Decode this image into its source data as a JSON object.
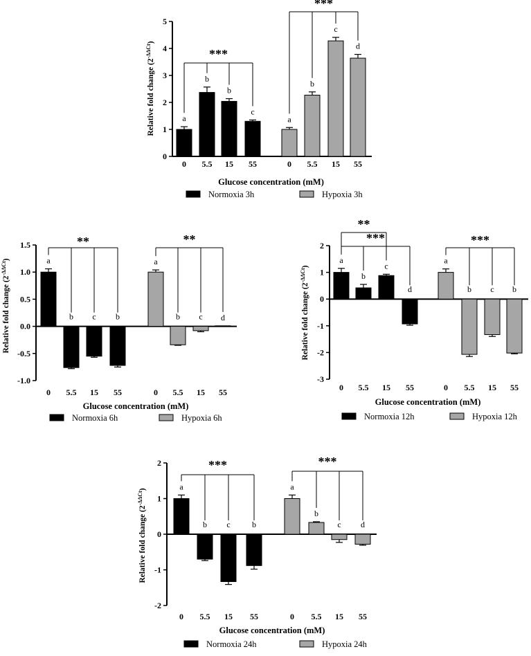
{
  "chart_data": [
    {
      "id": "3h",
      "type": "bar",
      "title": "",
      "xlabel": "Glucose concentration (mM)",
      "ylabel_main": "Relative fold change (2",
      "ylabel_sup": "-ΔΔCt",
      "ylabel_close": ")",
      "ylim": [
        0,
        5
      ],
      "yticks": [
        "0",
        "1",
        "2",
        "3",
        "4",
        "5"
      ],
      "ytick_values": [
        0,
        1,
        2,
        3,
        4,
        5
      ],
      "categories": [
        "0",
        "5.5",
        "15",
        "55"
      ],
      "series": [
        {
          "name": "Normoxia 3h",
          "color": "#000000",
          "values": [
            1.0,
            2.37,
            2.04,
            1.3
          ],
          "errors": [
            0.1,
            0.2,
            0.1,
            0.05
          ],
          "letters": [
            "a",
            "b",
            "b",
            "c"
          ]
        },
        {
          "name": "Hypoxia 3h",
          "color": "#a6a6a6",
          "values": [
            1.0,
            2.27,
            4.28,
            3.64
          ],
          "errors": [
            0.07,
            0.12,
            0.13,
            0.14
          ],
          "letters": [
            "a",
            "b",
            "c",
            "d"
          ]
        }
      ],
      "significance": [
        {
          "series": 0,
          "label": "***",
          "from": 0,
          "to": [
            1,
            2,
            3
          ]
        },
        {
          "series": 1,
          "label": "***",
          "from": 0,
          "to": [
            1,
            2,
            3
          ]
        }
      ]
    },
    {
      "id": "6h",
      "type": "bar",
      "title": "",
      "xlabel": "Glucose concentration (mM)",
      "ylabel_main": "Relative fold change (2",
      "ylabel_sup": "-ΔΔCt",
      "ylabel_close": ")",
      "ylim": [
        -1.0,
        1.5
      ],
      "yticks": [
        "-1.0",
        "-0.5",
        "0.0",
        "0.5",
        "1.0",
        "1.5"
      ],
      "ytick_values": [
        -1.0,
        -0.5,
        0.0,
        0.5,
        1.0,
        1.5
      ],
      "categories": [
        "0",
        "5.5",
        "15",
        "55"
      ],
      "series": [
        {
          "name": "Normoxia 6h",
          "color": "#000000",
          "values": [
            1.0,
            -0.76,
            -0.55,
            -0.72
          ],
          "errors": [
            0.06,
            0.02,
            0.02,
            0.03
          ],
          "letters": [
            "a",
            "b",
            "c",
            "b"
          ]
        },
        {
          "name": "Hypoxia 6h",
          "color": "#a6a6a6",
          "values": [
            1.0,
            -0.34,
            -0.08,
            0.01
          ],
          "errors": [
            0.04,
            0.01,
            0.02,
            0.0
          ],
          "letters": [
            "a",
            "b",
            "c",
            "d"
          ]
        }
      ],
      "significance": [
        {
          "series": 0,
          "label": "**",
          "from": 0,
          "to": [
            1,
            2,
            3
          ]
        },
        {
          "series": 1,
          "label": "**",
          "from": 0,
          "to": [
            1,
            2,
            3
          ]
        }
      ]
    },
    {
      "id": "12h",
      "type": "bar",
      "title": "",
      "xlabel": "Glucose concentration (mM)",
      "ylabel_main": "Relative fold change (2",
      "ylabel_sup": "-ΔΔCt",
      "ylabel_close": ")",
      "ylim": [
        -3,
        2
      ],
      "yticks": [
        "-3",
        "-2",
        "-1",
        "0",
        "1",
        "2"
      ],
      "ytick_values": [
        -3,
        -2,
        -1,
        0,
        1,
        2
      ],
      "categories": [
        "0",
        "5.5",
        "15",
        "55"
      ],
      "series": [
        {
          "name": "Normoxia 12h",
          "color": "#000000",
          "values": [
            1.0,
            0.42,
            0.88,
            -0.93
          ],
          "errors": [
            0.15,
            0.13,
            0.05,
            0.05
          ],
          "letters": [
            "a",
            "b",
            "c",
            "d"
          ]
        },
        {
          "name": "Hypoxia 12h",
          "color": "#a6a6a6",
          "values": [
            1.0,
            -2.07,
            -1.33,
            -2.02
          ],
          "errors": [
            0.13,
            0.08,
            0.07,
            0.03
          ],
          "letters": [
            "a",
            "b",
            "c",
            "b"
          ]
        }
      ],
      "significance": [
        {
          "series": 0,
          "label": "**",
          "from": 0,
          "to": [
            2
          ]
        },
        {
          "series": 0,
          "label": "***",
          "from": 0,
          "to": [
            1,
            2,
            3
          ]
        },
        {
          "series": 1,
          "label": "***",
          "from": 0,
          "to": [
            1,
            2,
            3
          ]
        }
      ]
    },
    {
      "id": "24h",
      "type": "bar",
      "title": "",
      "xlabel": "Glucose concentration (mM)",
      "ylabel_main": "Relative fold change (2",
      "ylabel_sup": "-ΔΔCt",
      "ylabel_close": ")",
      "ylim": [
        -2,
        2
      ],
      "yticks": [
        "-2",
        "-1",
        "0",
        "1",
        "2"
      ],
      "ytick_values": [
        -2,
        -1,
        0,
        1,
        2
      ],
      "categories": [
        "0",
        "5.5",
        "15",
        "55"
      ],
      "series": [
        {
          "name": "Normoxia 24h",
          "color": "#000000",
          "values": [
            1.0,
            -0.7,
            -1.33,
            -0.88
          ],
          "errors": [
            0.1,
            0.04,
            0.08,
            0.1
          ],
          "letters": [
            "a",
            "b",
            "c",
            "b"
          ]
        },
        {
          "name": "Hypoxia 24h",
          "color": "#a6a6a6",
          "values": [
            1.0,
            0.33,
            -0.15,
            -0.28
          ],
          "errors": [
            0.1,
            0.02,
            0.08,
            0.03
          ],
          "letters": [
            "a",
            "b",
            "c",
            "d"
          ]
        }
      ],
      "significance": [
        {
          "series": 0,
          "label": "***",
          "from": 0,
          "to": [
            1,
            2,
            3
          ]
        },
        {
          "series": 1,
          "label": "***",
          "from": 0,
          "to": [
            1,
            2,
            3
          ]
        }
      ]
    }
  ]
}
